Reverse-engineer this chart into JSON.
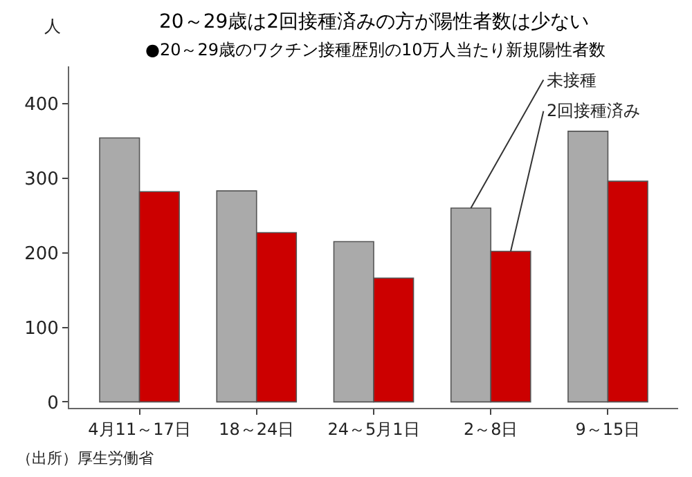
{
  "chart_data": {
    "type": "bar",
    "title": "20～29歳は2回接種済みの方が陽性者数は少ない",
    "subtitle": "●20～29歳のワクチン接種歴別の10万人当たり新規陽性者数",
    "ylabel": "人",
    "categories": [
      "4月11～17日",
      "18～24日",
      "24～5月1日",
      "2～8日",
      "9～15日"
    ],
    "series": [
      {
        "name": "未接種",
        "color": "#aaaaaa",
        "values": [
          354,
          283,
          215,
          260,
          363
        ]
      },
      {
        "name": "2回接種済み",
        "color": "#cc0000",
        "values": [
          282,
          227,
          166,
          202,
          296
        ]
      }
    ],
    "ylim": [
      -8,
      450
    ],
    "yticks": [
      0,
      100,
      200,
      300,
      400
    ],
    "legend": false,
    "annotations": [
      "（出所）厚生労働省"
    ]
  }
}
